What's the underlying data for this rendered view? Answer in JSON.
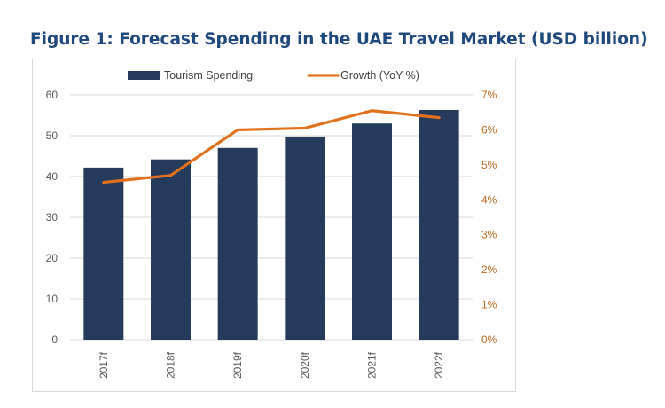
{
  "figure": {
    "title": "Figure 1: Forecast Spending in the UAE Travel Market (USD billion)"
  },
  "colors": {
    "bar": "#243b5c",
    "line": "#e2711d",
    "left_axis_text": "#595959",
    "right_axis_text": "#c0691f",
    "gridline": "#d9d9d9"
  },
  "chart_data": {
    "type": "bar",
    "title": "Figure 1: Forecast Spending in the UAE Travel Market (USD billion)",
    "categories": [
      "2017f",
      "2018f",
      "2019f",
      "2020f",
      "2021f",
      "2022f"
    ],
    "series": [
      {
        "name": "Tourism Spending",
        "type": "bar",
        "axis": "left",
        "values": [
          42.2,
          44.2,
          47.0,
          49.8,
          53.0,
          56.3
        ]
      },
      {
        "name": "Growth (YoY %)",
        "type": "line",
        "axis": "right",
        "values": [
          4.5,
          4.7,
          6.0,
          6.05,
          6.55,
          6.35
        ]
      }
    ],
    "y_left": {
      "ylim": [
        0,
        60
      ],
      "ticks": [
        "0",
        "10",
        "20",
        "30",
        "40",
        "50",
        "60"
      ],
      "tick_values": [
        0,
        10,
        20,
        30,
        40,
        50,
        60
      ]
    },
    "y_right": {
      "ylim": [
        0,
        7
      ],
      "ticks": [
        "0%",
        "1%",
        "2%",
        "3%",
        "4%",
        "5%",
        "6%",
        "7%"
      ],
      "tick_values": [
        0,
        1,
        2,
        3,
        4,
        5,
        6,
        7
      ]
    },
    "grid": true,
    "legend": "top-center",
    "xlabel": "",
    "ylabel": ""
  }
}
